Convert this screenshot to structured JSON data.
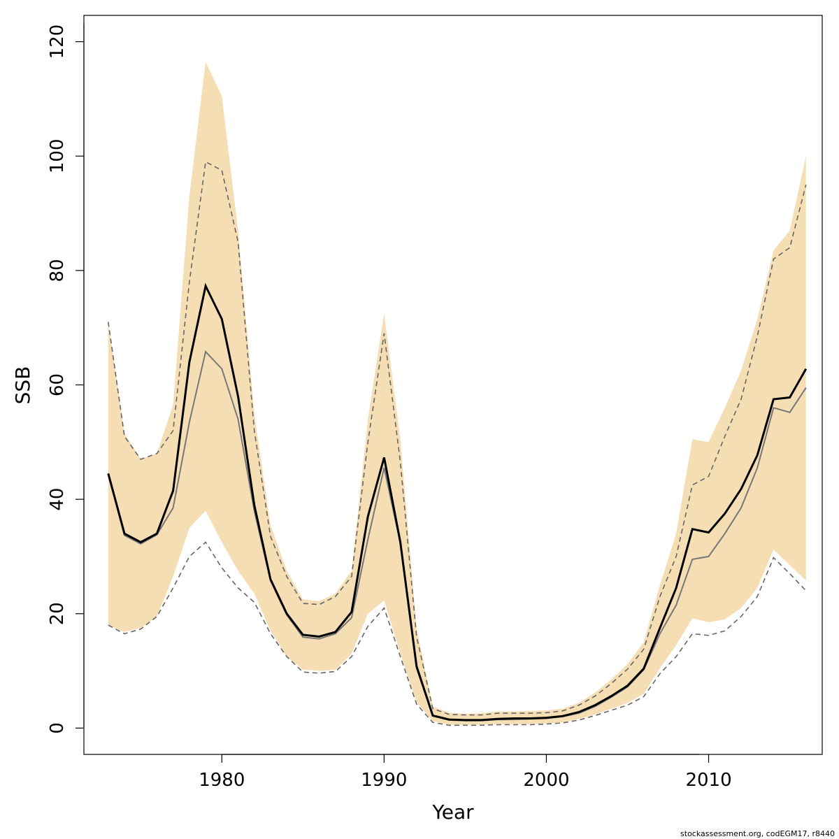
{
  "chart_data": {
    "type": "area",
    "xlabel": "Year",
    "ylabel": "SSB",
    "xlim": [
      1971.5,
      2017.0
    ],
    "ylim": [
      -4.6,
      124.6
    ],
    "xticks": [
      1980,
      1990,
      2000,
      2010
    ],
    "yticks": [
      0,
      20,
      40,
      60,
      80,
      100,
      120
    ],
    "grid": false,
    "legend": "none",
    "x": [
      1973,
      1974,
      1975,
      1976,
      1977,
      1978,
      1979,
      1980,
      1981,
      1982,
      1983,
      1984,
      1985,
      1986,
      1987,
      1988,
      1989,
      1990,
      1991,
      1992,
      1993,
      1994,
      1995,
      1996,
      1997,
      1998,
      1999,
      2000,
      2001,
      2002,
      2003,
      2004,
      2005,
      2006,
      2007,
      2008,
      2009,
      2010,
      2011,
      2012,
      2013,
      2014,
      2015,
      2016
    ],
    "series": [
      {
        "role": "confidence-band",
        "color": "#f5deb3",
        "lower": [
          18.0,
          16.8,
          17.5,
          19.5,
          26.5,
          35.0,
          38.0,
          32.5,
          27.5,
          23.5,
          17.0,
          12.5,
          10.2,
          10.0,
          10.2,
          13.0,
          20.0,
          22.3,
          13.0,
          4.5,
          1.2,
          0.6,
          0.6,
          0.6,
          0.7,
          0.7,
          0.7,
          0.8,
          1.0,
          1.6,
          2.4,
          3.4,
          4.4,
          6.0,
          10.5,
          14.5,
          19.2,
          18.5,
          19.0,
          21.0,
          24.5,
          31.2,
          28.5,
          25.8
        ],
        "upper": [
          71.0,
          51.5,
          47.0,
          48.0,
          56.5,
          93.0,
          116.5,
          110.5,
          87.0,
          55.0,
          35.5,
          27.5,
          22.5,
          22.2,
          23.5,
          27.5,
          54.0,
          72.5,
          50.5,
          17.5,
          3.8,
          2.7,
          2.5,
          2.6,
          2.9,
          2.9,
          3.0,
          3.1,
          3.4,
          4.4,
          6.2,
          8.5,
          11.2,
          15.0,
          25.0,
          34.0,
          50.5,
          50.0,
          56.0,
          62.5,
          71.5,
          83.5,
          87.0,
          100.0
        ]
      },
      {
        "role": "upper-dashed",
        "color": "#666666",
        "values": [
          71.0,
          51.0,
          47.0,
          48.0,
          52.0,
          78.0,
          99.0,
          97.5,
          85.0,
          52.0,
          33.5,
          26.5,
          21.8,
          21.6,
          23.0,
          26.5,
          50.0,
          69.0,
          46.5,
          16.0,
          3.4,
          2.4,
          2.3,
          2.3,
          2.6,
          2.6,
          2.6,
          2.7,
          3.0,
          4.0,
          5.6,
          7.8,
          10.3,
          13.8,
          23.0,
          30.0,
          42.5,
          44.0,
          51.0,
          57.5,
          68.5,
          82.0,
          84.0,
          95.0
        ]
      },
      {
        "role": "lower-dashed",
        "color": "#666666",
        "values": [
          18.0,
          16.5,
          17.3,
          19.5,
          24.5,
          30.0,
          32.5,
          28.0,
          24.5,
          22.0,
          16.5,
          12.5,
          9.8,
          9.6,
          9.9,
          12.5,
          17.8,
          21.0,
          12.5,
          4.2,
          1.0,
          0.5,
          0.5,
          0.5,
          0.6,
          0.6,
          0.6,
          0.7,
          0.9,
          1.4,
          2.2,
          3.1,
          4.0,
          5.5,
          9.5,
          12.5,
          16.5,
          16.2,
          17.0,
          19.5,
          23.0,
          29.8,
          27.0,
          24.0
        ]
      },
      {
        "role": "estimate",
        "color": "#000000",
        "values": [
          44.5,
          34.0,
          32.5,
          34.0,
          41.5,
          64.0,
          77.3,
          71.5,
          58.0,
          39.0,
          26.0,
          20.0,
          16.3,
          16.0,
          16.8,
          20.3,
          37.0,
          47.3,
          32.5,
          10.8,
          2.2,
          1.5,
          1.4,
          1.4,
          1.6,
          1.7,
          1.7,
          1.8,
          2.1,
          2.8,
          4.0,
          5.6,
          7.4,
          10.4,
          17.5,
          24.5,
          34.8,
          34.2,
          37.5,
          41.8,
          47.7,
          57.5,
          57.8,
          62.8
        ]
      },
      {
        "role": "grey-line",
        "color": "#777777",
        "values": [
          44.5,
          33.7,
          32.2,
          33.8,
          38.5,
          53.5,
          65.8,
          62.8,
          54.0,
          38.0,
          25.8,
          19.8,
          15.9,
          15.6,
          16.5,
          19.3,
          33.0,
          45.5,
          32.3,
          10.5,
          2.1,
          1.4,
          1.3,
          1.3,
          1.5,
          1.5,
          1.6,
          1.7,
          2.0,
          2.6,
          3.8,
          5.4,
          7.2,
          10.2,
          16.5,
          21.5,
          29.5,
          30.0,
          34.0,
          38.5,
          45.5,
          56.0,
          55.2,
          59.5
        ]
      }
    ]
  },
  "credit": "stockassessment.org, codEGM17, r8440"
}
